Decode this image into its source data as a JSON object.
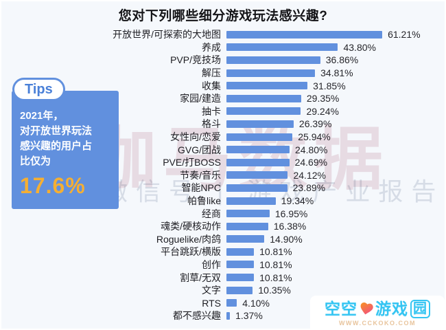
{
  "title": "您对下列哪些细分游戏玩法感兴趣?",
  "tips": {
    "badge": "Tips",
    "text": "2021年，\n对开放世界玩法\n感兴趣的用户占\n比仅为",
    "highlight": "17.6%"
  },
  "watermark": {
    "main": "伽马数据",
    "sub": "微信号 | 游戏产业报告"
  },
  "logo": {
    "text_left": "空空",
    "icon": "heart-icon",
    "text_mid": "游戏",
    "text_boxed": "园",
    "url": "WWW.CCKOKO.COM"
  },
  "colors": {
    "background": "#F5F8FC",
    "bar": "#6190DE",
    "tips_bg": "#6190DE",
    "tips_highlight": "#F5AF33",
    "watermark_pink": "#C98F9E",
    "logo_cyan": "#35C5F2",
    "logo_url_tan": "#E8C49C"
  },
  "chart_data": {
    "type": "bar",
    "orientation": "horizontal",
    "title": "您对下列哪些细分游戏玩法感兴趣?",
    "xlabel": "",
    "ylabel": "",
    "unit": "%",
    "xlim": [
      0,
      65
    ],
    "grid": false,
    "legend": null,
    "categories": [
      "开放世界/可探索的大地图",
      "养成",
      "PVP/竞技场",
      "解压",
      "收集",
      "家园/建造",
      "抽卡",
      "格斗",
      "女性向/恋爱",
      "GVG/团战",
      "PVE/打BOSS",
      "节奏/音乐",
      "智能NPC",
      "帕鲁like",
      "经商",
      "魂类/硬核动作",
      "Roguelike/肉鸽",
      "平台跳跃/横版",
      "创作",
      "割草/无双",
      "文字",
      "RTS",
      "都不感兴趣"
    ],
    "values": [
      61.21,
      43.8,
      36.86,
      34.81,
      31.85,
      29.35,
      29.24,
      26.39,
      25.94,
      24.8,
      24.69,
      24.12,
      23.89,
      19.34,
      16.95,
      16.38,
      14.9,
      10.81,
      10.81,
      10.81,
      10.35,
      4.1,
      1.37
    ],
    "value_labels": [
      "61.21%",
      "43.80%",
      "36.86%",
      "34.81%",
      "31.85%",
      "29.35%",
      "29.24%",
      "26.39%",
      "25.94%",
      "24.80%",
      "24.69%",
      "24.12%",
      "23.89%",
      "19.34%",
      "16.95%",
      "16.38%",
      "14.90%",
      "10.81%",
      "10.81%",
      "10.81%",
      "10.35%",
      "4.10%",
      "1.37%"
    ]
  }
}
